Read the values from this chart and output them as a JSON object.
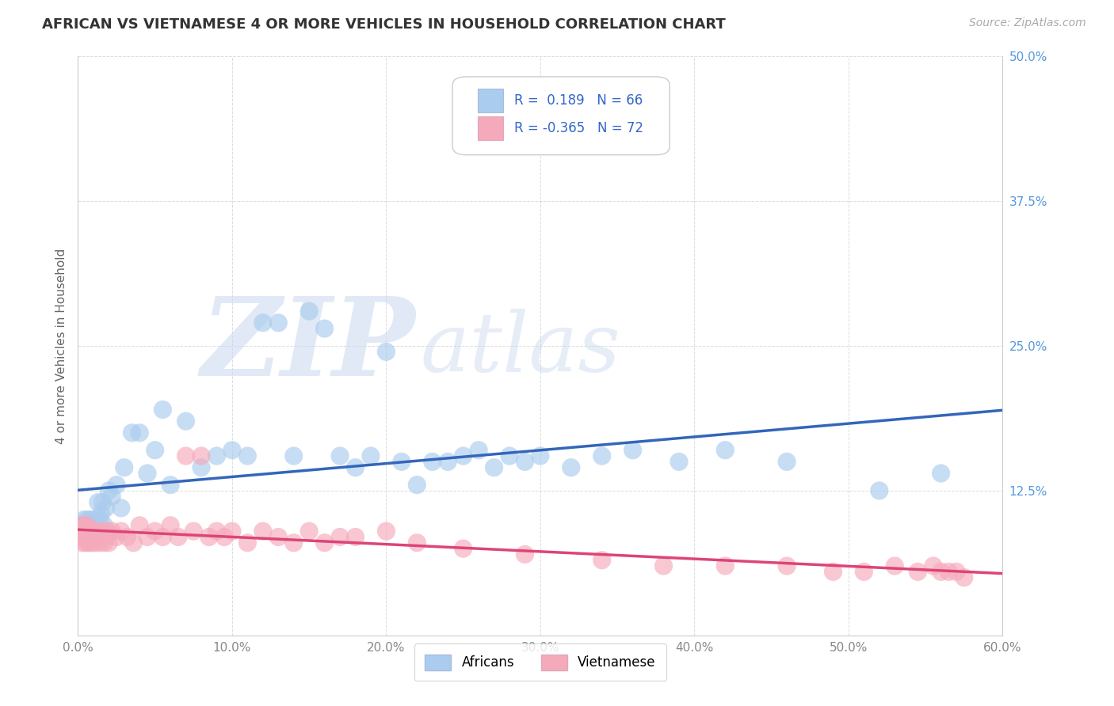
{
  "title": "AFRICAN VS VIETNAMESE 4 OR MORE VEHICLES IN HOUSEHOLD CORRELATION CHART",
  "source": "Source: ZipAtlas.com",
  "ylabel": "4 or more Vehicles in Household",
  "xlim": [
    0.0,
    0.6
  ],
  "ylim": [
    0.0,
    0.5
  ],
  "xticks": [
    0.0,
    0.1,
    0.2,
    0.3,
    0.4,
    0.5,
    0.6
  ],
  "xticklabels": [
    "0.0%",
    "10.0%",
    "20.0%",
    "30.0%",
    "40.0%",
    "50.0%",
    "60.0%"
  ],
  "yticks": [
    0.0,
    0.125,
    0.25,
    0.375,
    0.5
  ],
  "yticklabels": [
    "",
    "12.5%",
    "25.0%",
    "37.5%",
    "50.0%"
  ],
  "africans_face_color": "#aaccee",
  "vietnamese_face_color": "#f5aabb",
  "africans_line_color": "#3366bb",
  "vietnamese_line_color": "#dd4477",
  "R_africans": 0.189,
  "N_africans": 66,
  "R_vietnamese": -0.365,
  "N_vietnamese": 72,
  "background_color": "#ffffff",
  "grid_color": "#bbbbbb",
  "tick_color_y": "#5599dd",
  "tick_color_x": "#888888",
  "africans_x": [
    0.002,
    0.003,
    0.004,
    0.004,
    0.005,
    0.005,
    0.006,
    0.006,
    0.007,
    0.007,
    0.008,
    0.008,
    0.009,
    0.01,
    0.01,
    0.011,
    0.012,
    0.013,
    0.014,
    0.015,
    0.016,
    0.017,
    0.018,
    0.02,
    0.022,
    0.025,
    0.028,
    0.03,
    0.035,
    0.04,
    0.045,
    0.05,
    0.055,
    0.06,
    0.07,
    0.08,
    0.09,
    0.1,
    0.11,
    0.12,
    0.13,
    0.14,
    0.15,
    0.16,
    0.17,
    0.18,
    0.19,
    0.2,
    0.21,
    0.22,
    0.23,
    0.24,
    0.25,
    0.26,
    0.27,
    0.28,
    0.29,
    0.3,
    0.32,
    0.34,
    0.36,
    0.39,
    0.42,
    0.46,
    0.52,
    0.56
  ],
  "africans_y": [
    0.095,
    0.09,
    0.085,
    0.1,
    0.09,
    0.095,
    0.085,
    0.1,
    0.09,
    0.095,
    0.085,
    0.1,
    0.095,
    0.09,
    0.1,
    0.095,
    0.09,
    0.115,
    0.1,
    0.105,
    0.115,
    0.095,
    0.11,
    0.125,
    0.12,
    0.13,
    0.11,
    0.145,
    0.175,
    0.175,
    0.14,
    0.16,
    0.195,
    0.13,
    0.185,
    0.145,
    0.155,
    0.16,
    0.155,
    0.27,
    0.27,
    0.155,
    0.28,
    0.265,
    0.155,
    0.145,
    0.155,
    0.245,
    0.15,
    0.13,
    0.15,
    0.15,
    0.155,
    0.16,
    0.145,
    0.155,
    0.15,
    0.155,
    0.145,
    0.155,
    0.16,
    0.15,
    0.16,
    0.15,
    0.125,
    0.14
  ],
  "vietnamese_x": [
    0.001,
    0.002,
    0.002,
    0.003,
    0.003,
    0.004,
    0.004,
    0.005,
    0.005,
    0.006,
    0.006,
    0.007,
    0.007,
    0.008,
    0.008,
    0.009,
    0.009,
    0.01,
    0.01,
    0.011,
    0.012,
    0.013,
    0.014,
    0.015,
    0.016,
    0.017,
    0.018,
    0.019,
    0.02,
    0.022,
    0.025,
    0.028,
    0.032,
    0.036,
    0.04,
    0.045,
    0.05,
    0.055,
    0.06,
    0.065,
    0.07,
    0.075,
    0.08,
    0.085,
    0.09,
    0.095,
    0.1,
    0.11,
    0.12,
    0.13,
    0.14,
    0.15,
    0.16,
    0.17,
    0.18,
    0.2,
    0.22,
    0.25,
    0.29,
    0.34,
    0.38,
    0.42,
    0.46,
    0.49,
    0.51,
    0.53,
    0.545,
    0.555,
    0.56,
    0.565,
    0.57,
    0.575
  ],
  "vietnamese_y": [
    0.09,
    0.085,
    0.095,
    0.08,
    0.09,
    0.085,
    0.095,
    0.08,
    0.09,
    0.085,
    0.095,
    0.08,
    0.09,
    0.085,
    0.09,
    0.08,
    0.085,
    0.09,
    0.085,
    0.08,
    0.085,
    0.09,
    0.08,
    0.085,
    0.09,
    0.08,
    0.085,
    0.09,
    0.08,
    0.09,
    0.085,
    0.09,
    0.085,
    0.08,
    0.095,
    0.085,
    0.09,
    0.085,
    0.095,
    0.085,
    0.155,
    0.09,
    0.155,
    0.085,
    0.09,
    0.085,
    0.09,
    0.08,
    0.09,
    0.085,
    0.08,
    0.09,
    0.08,
    0.085,
    0.085,
    0.09,
    0.08,
    0.075,
    0.07,
    0.065,
    0.06,
    0.06,
    0.06,
    0.055,
    0.055,
    0.06,
    0.055,
    0.06,
    0.055,
    0.055,
    0.055,
    0.05
  ]
}
